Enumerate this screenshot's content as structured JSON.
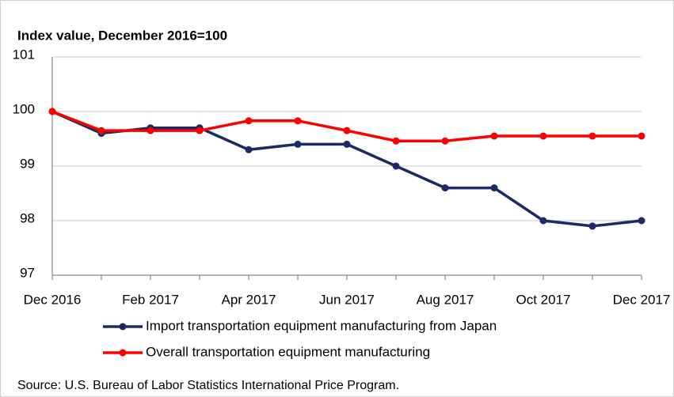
{
  "chart_data": {
    "type": "line",
    "title": "Index value, December 2016=100",
    "categories": [
      "Dec 2016",
      null,
      "Feb 2017",
      null,
      "Apr 2017",
      null,
      "Jun 2017",
      null,
      "Aug 2017",
      null,
      "Oct 2017",
      null,
      "Dec 2017"
    ],
    "series": [
      {
        "name": "Import transportation equipment manufacturing from Japan",
        "color": "#1b2a66",
        "values": [
          100,
          99.6,
          99.7,
          99.7,
          99.3,
          99.4,
          99.4,
          99.0,
          98.6,
          98.6,
          98.0,
          97.9,
          98.0
        ]
      },
      {
        "name": "Overall transportation equipment manufacturing",
        "color": "#ff0000",
        "values": [
          100,
          99.65,
          99.65,
          99.65,
          99.83,
          99.83,
          99.65,
          99.46,
          99.46,
          99.55,
          99.55,
          99.55,
          99.55
        ]
      }
    ],
    "ylim": [
      97,
      101
    ],
    "yticks": [
      97,
      98,
      99,
      100,
      101
    ],
    "grid": true,
    "source": "Source: U.S. Bureau of Labor Statistics International Price Program."
  }
}
